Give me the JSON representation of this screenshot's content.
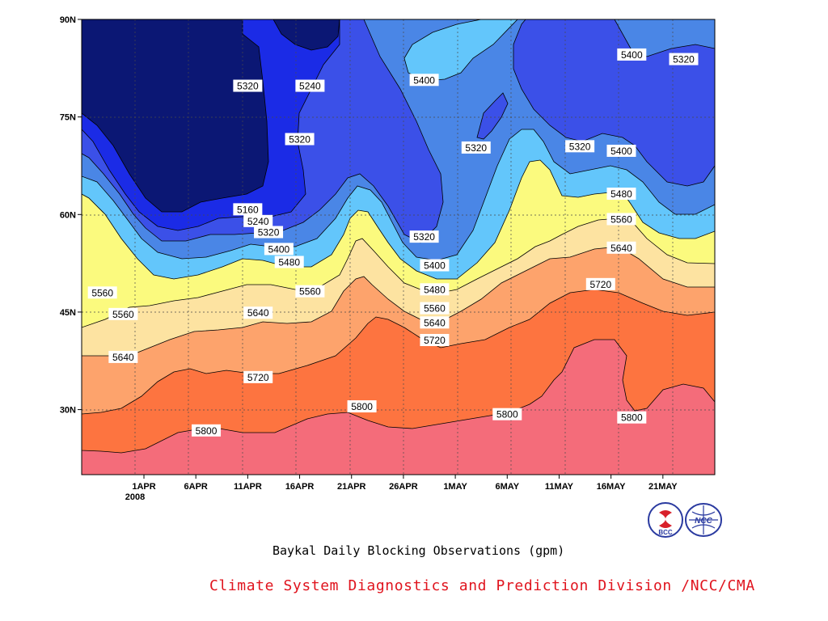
{
  "caption": "Baykal Daily Blocking Observations (gpm)",
  "credit": "Climate System Diagnostics and Prediction Division /NCC/CMA",
  "logos": [
    {
      "name": "BCC",
      "text": "BCC"
    },
    {
      "name": "NCC",
      "text": "NCC"
    }
  ],
  "chart_data": {
    "type": "heatmap",
    "title": "Baykal Daily Blocking Observations (gpm)",
    "x_tick_labels": [
      "1APR",
      "6APR",
      "11APR",
      "16APR",
      "21APR",
      "26APR",
      "1MAY",
      "6MAY",
      "11MAY",
      "16MAY",
      "21MAY"
    ],
    "x_year_label": "2008",
    "x_range": [
      "2008-03-26",
      "2008-05-26"
    ],
    "y_tick_labels": [
      "90N",
      "75N",
      "60N",
      "45N",
      "30N"
    ],
    "y_range": [
      20,
      90
    ],
    "contour_levels": [
      5160,
      5240,
      5320,
      5400,
      5480,
      5560,
      5640,
      5720,
      5800
    ],
    "fill_colors": [
      "#0b1774",
      "#1b2be6",
      "#3b50e8",
      "#4a86e6",
      "#63c6fb",
      "#fbfa7e",
      "#fde3a1",
      "#fda36c",
      "#fd7440",
      "#f46c7a"
    ],
    "contour_labels": [
      {
        "text": "5320",
        "date": "2008-04-11",
        "lat": 79.8
      },
      {
        "text": "5240",
        "date": "2008-04-17",
        "lat": 79.8
      },
      {
        "text": "5400",
        "date": "2008-04-28",
        "lat": 80.7
      },
      {
        "text": "5400",
        "date": "2008-05-18",
        "lat": 84.6
      },
      {
        "text": "5320",
        "date": "2008-05-23",
        "lat": 83.9
      },
      {
        "text": "5320",
        "date": "2008-04-16",
        "lat": 71.6
      },
      {
        "text": "5320",
        "date": "2008-05-03",
        "lat": 70.3
      },
      {
        "text": "5320",
        "date": "2008-05-13",
        "lat": 70.5
      },
      {
        "text": "5400",
        "date": "2008-05-17",
        "lat": 69.8
      },
      {
        "text": "5480",
        "date": "2008-05-17",
        "lat": 63.2
      },
      {
        "text": "5160",
        "date": "2008-04-11",
        "lat": 60.8
      },
      {
        "text": "5240",
        "date": "2008-04-12",
        "lat": 59.0
      },
      {
        "text": "5320",
        "date": "2008-04-13",
        "lat": 57.3
      },
      {
        "text": "5560",
        "date": "2008-05-17",
        "lat": 59.3
      },
      {
        "text": "5320",
        "date": "2008-04-28",
        "lat": 56.6
      },
      {
        "text": "5400",
        "date": "2008-04-14",
        "lat": 54.7
      },
      {
        "text": "5640",
        "date": "2008-05-17",
        "lat": 54.9
      },
      {
        "text": "5480",
        "date": "2008-04-15",
        "lat": 52.7
      },
      {
        "text": "5400",
        "date": "2008-04-29",
        "lat": 52.2
      },
      {
        "text": "5560",
        "date": "2008-03-28",
        "lat": 48.0
      },
      {
        "text": "5560",
        "date": "2008-04-17",
        "lat": 48.2
      },
      {
        "text": "5480",
        "date": "2008-04-29",
        "lat": 48.5
      },
      {
        "text": "5720",
        "date": "2008-05-15",
        "lat": 49.3
      },
      {
        "text": "5560",
        "date": "2008-03-30",
        "lat": 44.7
      },
      {
        "text": "5640",
        "date": "2008-04-12",
        "lat": 44.9
      },
      {
        "text": "5560",
        "date": "2008-04-29",
        "lat": 45.6
      },
      {
        "text": "5640",
        "date": "2008-04-29",
        "lat": 43.4
      },
      {
        "text": "5640",
        "date": "2008-03-30",
        "lat": 38.1
      },
      {
        "text": "5720",
        "date": "2008-04-29",
        "lat": 40.7
      },
      {
        "text": "5720",
        "date": "2008-04-12",
        "lat": 35.0
      },
      {
        "text": "5800",
        "date": "2008-04-22",
        "lat": 30.5
      },
      {
        "text": "5800",
        "date": "2008-05-06",
        "lat": 29.3
      },
      {
        "text": "5800",
        "date": "2008-05-18",
        "lat": 28.8
      },
      {
        "text": "5800",
        "date": "2008-04-07",
        "lat": 26.8
      }
    ]
  }
}
